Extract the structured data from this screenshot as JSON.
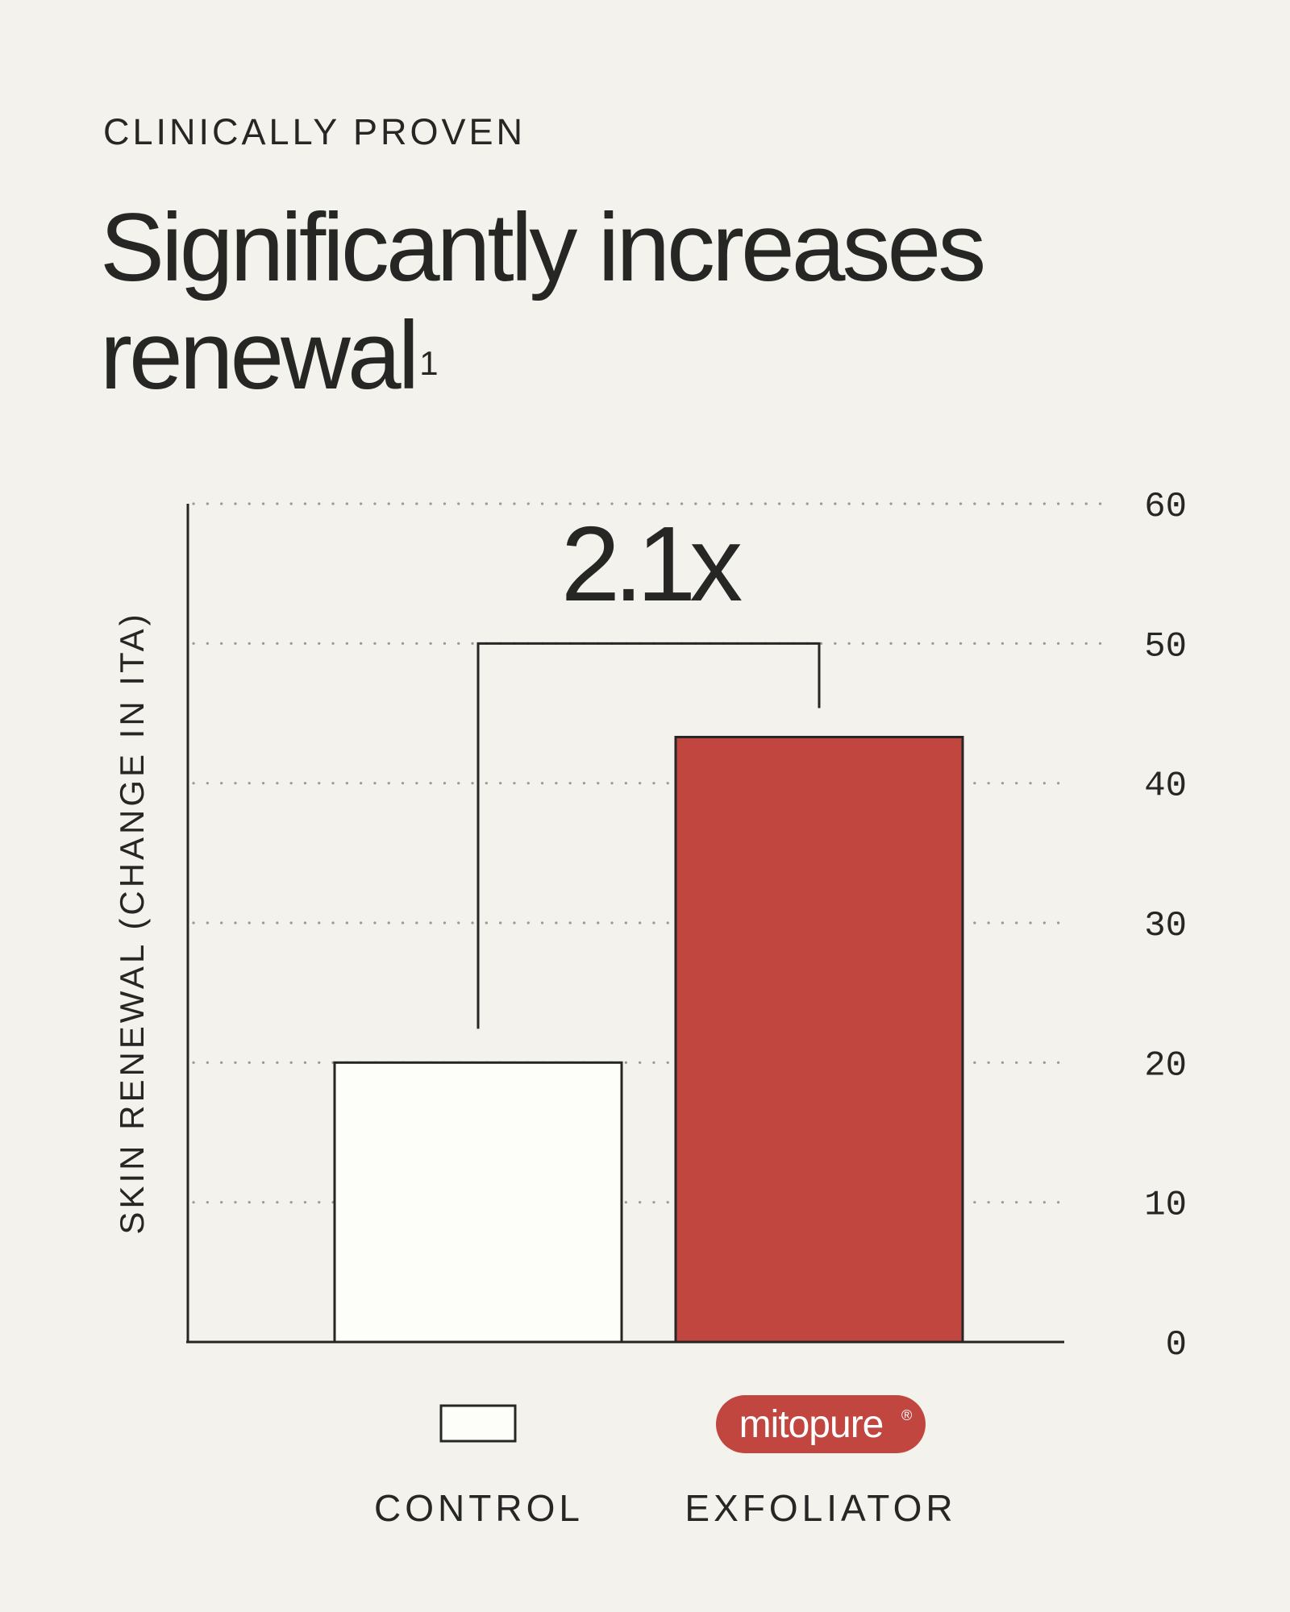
{
  "header": {
    "eyebrow": "CLINICALLY PROVEN",
    "title": "Significantly increases renewal",
    "footnote_mark": "1"
  },
  "colors": {
    "background": "#f3f2ec",
    "ink": "#262624",
    "accent": "#c1463f",
    "control_fill": "#fdfdf9",
    "grid": "#9b9a93"
  },
  "chart_data": {
    "type": "bar",
    "categories": [
      "CONTROL",
      "EXFOLIATOR"
    ],
    "values": [
      20,
      43.3
    ],
    "ylabel": "SKIN RENEWAL (CHANGE IN ITA)",
    "ylim": [
      0,
      60
    ],
    "yticks": [
      0,
      10,
      20,
      30,
      40,
      50,
      60
    ],
    "y_axis_side": "right",
    "grid": true,
    "grid_style": "dotted",
    "bar_colors": [
      "#fdfdf9",
      "#c1463f"
    ],
    "annotation": {
      "text": "2.1x",
      "type": "comparison-bracket",
      "between": [
        "CONTROL",
        "EXFOLIATOR"
      ]
    },
    "legend": {
      "placement": "bottom",
      "items": [
        {
          "category": "CONTROL",
          "marker": "white-box"
        },
        {
          "category": "EXFOLIATOR",
          "marker": "brand-badge",
          "brand": "mitopure",
          "brand_mark": "®"
        }
      ]
    }
  }
}
